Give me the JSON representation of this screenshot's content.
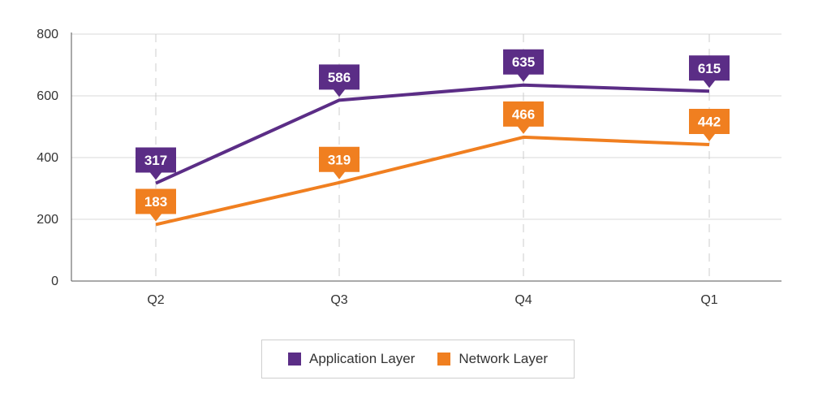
{
  "chart_data": {
    "type": "line",
    "categories": [
      "Q2",
      "Q3",
      "Q4",
      "Q1"
    ],
    "series": [
      {
        "name": "Application Layer",
        "values": [
          317,
          586,
          635,
          615
        ],
        "color": "#5b2d86"
      },
      {
        "name": "Network Layer",
        "values": [
          183,
          319,
          466,
          442
        ],
        "color": "#f07f20"
      }
    ],
    "ylim": [
      0,
      800
    ],
    "yticks": [
      0,
      200,
      400,
      600,
      800
    ],
    "ytick_labels": [
      "0",
      "200",
      "400",
      "600",
      "800"
    ],
    "grid": true,
    "legend_position": "bottom-center",
    "data_labels": true
  }
}
